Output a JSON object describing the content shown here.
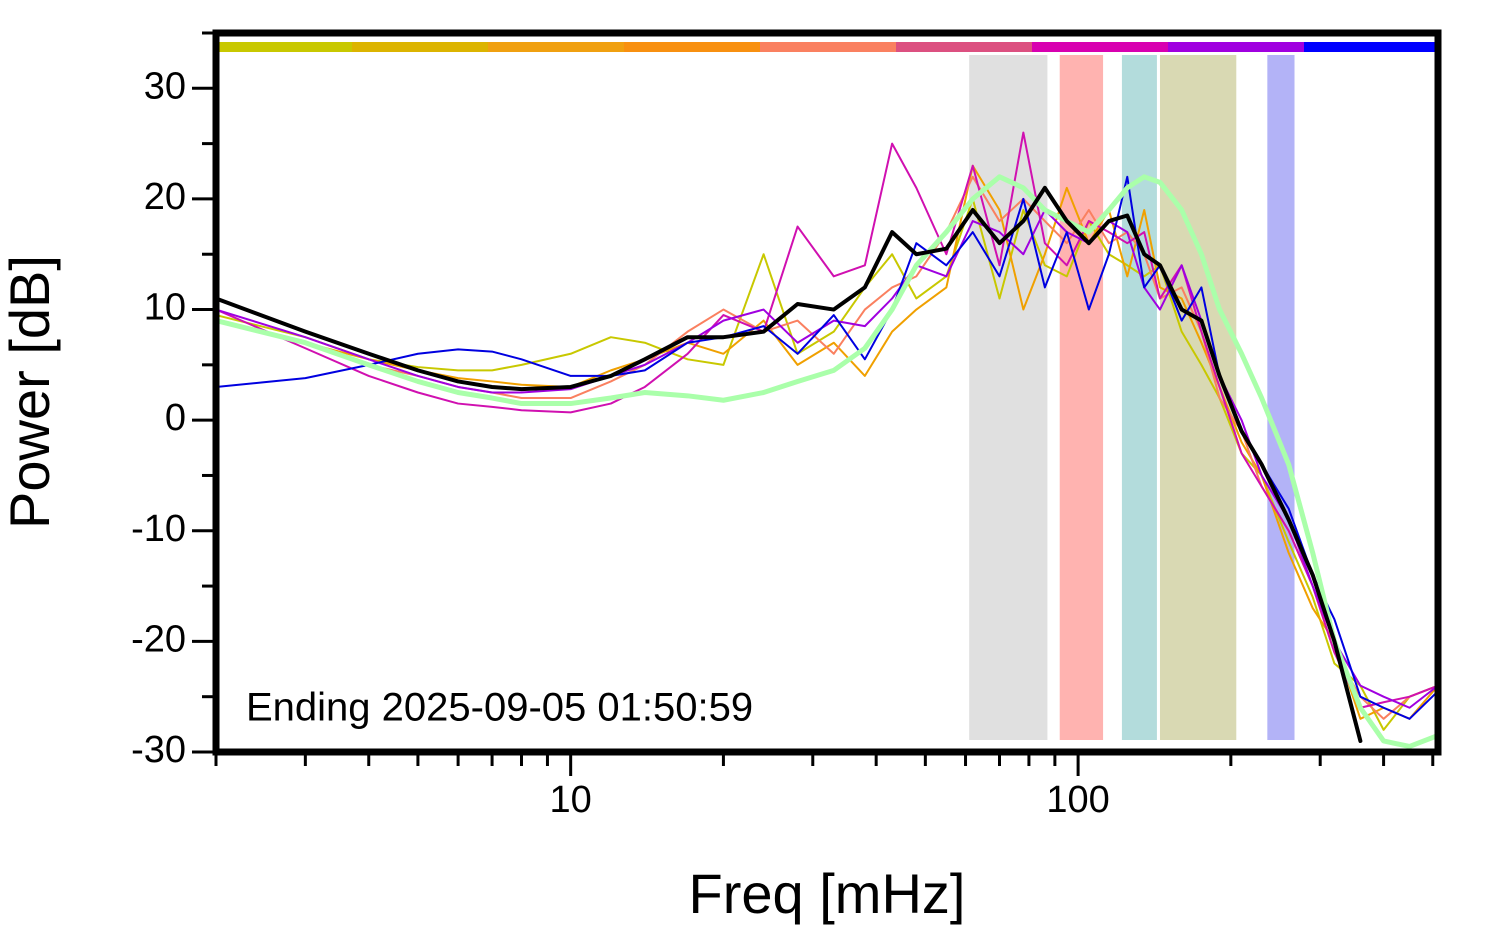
{
  "chart_data": {
    "type": "line",
    "xlabel": "Freq [mHz]",
    "ylabel": "Power [dB]",
    "annotation": "Ending 2025-09-05 01:50:59",
    "xscale": "log",
    "xlim": [
      2,
      512
    ],
    "ylim": [
      -30,
      35
    ],
    "xticks": [
      10,
      100
    ],
    "xminorticks": [
      2,
      3,
      4,
      5,
      6,
      7,
      8,
      9,
      20,
      30,
      40,
      50,
      60,
      70,
      80,
      90,
      200,
      300,
      400,
      500
    ],
    "yticks": [
      -30,
      -20,
      -10,
      0,
      10,
      20,
      30
    ],
    "yminorticks": [
      -25,
      -15,
      -5,
      5,
      15,
      25,
      35
    ],
    "bands": [
      {
        "from": 61,
        "to": 87,
        "color": "#e0e0e0"
      },
      {
        "from": 92,
        "to": 112,
        "color": "#ffb3b0"
      },
      {
        "from": 122,
        "to": 143,
        "color": "#b3dcdc"
      },
      {
        "from": 145,
        "to": 205,
        "color": "#d9d9b3"
      },
      {
        "from": 236,
        "to": 267,
        "color": "#b3b3f7"
      }
    ],
    "x": [
      2,
      3,
      4,
      5,
      6,
      7,
      8,
      10,
      12,
      14,
      17,
      20,
      24,
      28,
      33,
      38,
      43,
      48,
      55,
      62,
      70,
      78,
      86,
      95,
      105,
      115,
      125,
      135,
      145,
      160,
      175,
      190,
      210,
      230,
      260,
      290,
      320,
      360,
      400,
      450,
      512
    ],
    "series": [
      {
        "color": "#c8c800",
        "width": 2,
        "values": [
          9.5,
          7.5,
          5.5,
          4.8,
          4.5,
          4.5,
          5,
          6,
          7.5,
          7,
          5.5,
          5,
          15,
          6,
          8,
          12,
          15,
          11,
          13,
          20,
          11,
          19,
          14,
          13,
          18,
          15,
          14,
          13,
          14,
          8,
          5,
          2,
          -3,
          -5,
          -11,
          -16,
          -22,
          -24,
          -28,
          -25,
          -24
        ]
      },
      {
        "color": "#f0a000",
        "width": 2,
        "values": [
          9,
          7,
          5.5,
          4.5,
          3.8,
          3.5,
          3.2,
          3,
          4.5,
          5.5,
          7,
          6,
          9,
          5,
          7,
          4,
          8,
          10,
          12,
          23,
          19,
          10,
          15,
          21,
          16,
          19,
          13,
          19,
          12,
          11,
          7,
          3,
          -2,
          -5,
          -12,
          -17,
          -20,
          -27,
          -26,
          -27,
          -24
        ]
      },
      {
        "color": "#fa8060",
        "width": 2,
        "values": [
          9,
          7,
          5,
          4,
          3,
          2.5,
          2,
          2,
          3.5,
          5,
          8,
          10,
          8,
          9,
          6,
          10,
          12,
          13,
          17,
          22,
          18,
          20,
          18,
          16,
          19,
          16,
          17,
          15,
          11,
          12,
          8,
          2,
          -1,
          -6,
          -10,
          -15,
          -21,
          -25,
          -27,
          -25,
          -24
        ]
      },
      {
        "color": "#d010b0",
        "width": 2,
        "values": [
          10,
          6.5,
          4,
          2.5,
          1.5,
          1.2,
          0.9,
          0.7,
          1.5,
          3,
          6,
          9.5,
          8,
          17.5,
          13,
          14,
          25,
          21,
          15,
          23,
          14,
          26,
          16,
          14,
          18,
          17,
          16,
          17,
          11,
          14,
          8,
          3,
          -3,
          -6,
          -10,
          -15,
          -21,
          -26,
          -25.5,
          -25,
          -24
        ]
      },
      {
        "color": "#a000e0",
        "width": 2,
        "values": [
          10,
          7.5,
          5.5,
          4,
          3,
          2.5,
          2.5,
          2.8,
          4,
          5,
          7,
          9,
          10,
          7,
          9,
          8.5,
          11,
          14,
          13,
          18,
          17,
          15,
          19,
          17,
          16,
          18,
          17,
          12,
          10,
          14,
          9,
          4,
          0,
          -5,
          -9,
          -15,
          -20,
          -24,
          -25,
          -26,
          -24
        ]
      },
      {
        "color": "#0000e0",
        "width": 2,
        "values": [
          3,
          3.8,
          5,
          6,
          6.4,
          6.2,
          5.5,
          4,
          4,
          4.5,
          7,
          7.5,
          8.5,
          6,
          9.5,
          5.5,
          10,
          16,
          14,
          17,
          13,
          20,
          12,
          17,
          10,
          15,
          22,
          12,
          14,
          9,
          12,
          4,
          -1,
          -4,
          -8,
          -14,
          -18,
          -25,
          -26,
          -27,
          -24.5
        ]
      },
      {
        "color": "#aaffaa",
        "width": 5,
        "values": [
          9,
          7,
          5,
          3.5,
          2.5,
          2,
          1.5,
          1.5,
          2,
          2.5,
          2.2,
          1.8,
          2.5,
          3.5,
          4.5,
          6.5,
          10,
          14,
          17,
          20,
          22,
          21,
          19,
          18,
          17,
          19,
          21,
          22,
          21.5,
          19,
          15,
          10,
          6,
          2,
          -4,
          -12,
          -20,
          -26,
          -29,
          -29.5,
          -28.5
        ]
      },
      {
        "color": "#000000",
        "width": 4,
        "values": [
          11,
          8,
          6,
          4.5,
          3.5,
          3,
          2.8,
          3,
          4,
          5.5,
          7.5,
          7.5,
          8,
          10.5,
          10,
          12,
          17,
          15,
          15.5,
          19,
          16,
          18,
          21,
          18,
          16,
          18,
          18.5,
          15,
          14,
          10,
          9,
          4,
          -1,
          -4,
          -9,
          -14,
          -20,
          -29,
          null,
          null,
          null
        ]
      }
    ]
  }
}
